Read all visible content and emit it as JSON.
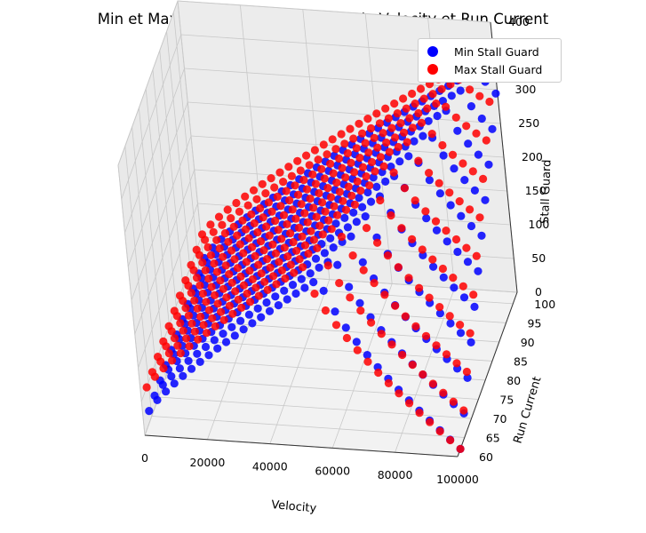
{
  "chart_data": {
    "type": "scatter",
    "projection": "3d",
    "title": "Min et Max Stall Guard en fonction de Velocity et Run Current",
    "xlabel": "Velocity",
    "ylabel": "Run Current",
    "zlabel": "Stall Guard",
    "xticks": [
      "0",
      "20000",
      "40000",
      "60000",
      "80000",
      "100000"
    ],
    "yticks": [
      "60",
      "65",
      "70",
      "75",
      "80",
      "85",
      "90",
      "95",
      "100"
    ],
    "zticks": [
      "0",
      "50",
      "100",
      "150",
      "200",
      "250",
      "300",
      "350",
      "400"
    ],
    "xlim": [
      0,
      100000
    ],
    "ylim": [
      60,
      100
    ],
    "zlim": [
      0,
      400
    ],
    "grid": true,
    "legend_position": "top-right",
    "run_current_levels": [
      62,
      66,
      70,
      74,
      78,
      82,
      86,
      90,
      94,
      98,
      102
    ],
    "velocity_sampling": {
      "min": 1000,
      "max": 100000,
      "step": 3000
    },
    "series": [
      {
        "name": "Min Stall Guard",
        "color": "#0000ff",
        "model": "rise-then-fall",
        "peak_at_lowest_current": {
          "velocity": 60000,
          "value": 240
        },
        "peak_at_highest_current": {
          "velocity": 95000,
          "value": 335
        },
        "value_at_low_velocity": 25,
        "value_at_max_velocity_lowest_current": 0,
        "value_at_max_velocity_highest_current": 300
      },
      {
        "name": "Max Stall Guard",
        "color": "#ff0000",
        "model": "rise-then-fall",
        "peak_at_lowest_current": {
          "velocity": 55000,
          "value": 255
        },
        "peak_at_highest_current": {
          "velocity": 95000,
          "value": 350
        },
        "value_at_low_velocity": 60,
        "value_at_max_velocity_lowest_current": 0,
        "value_at_max_velocity_highest_current": 345
      }
    ]
  }
}
